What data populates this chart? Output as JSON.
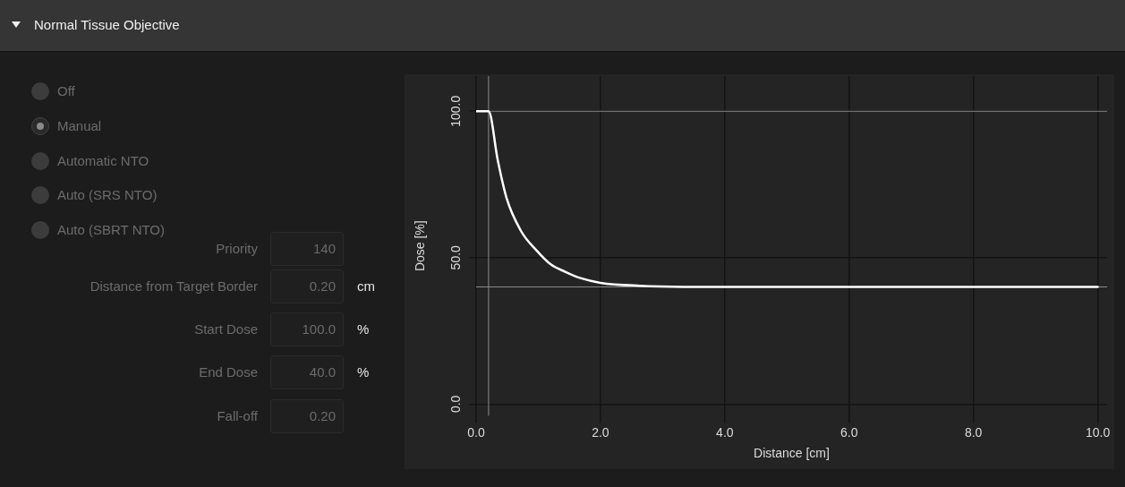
{
  "chart_data": [
    {
      "type": "other",
      "title": "Normal Tissue Objective",
      "annotations": [
        "Off",
        "Manual",
        "Automatic NTO",
        "Auto (SRS NTO)",
        "Auto (SBRT NTO)",
        "Priority",
        "140",
        "Distance from Target Border",
        "0.20",
        "cm",
        "Start Dose",
        "100.0",
        "%",
        "End Dose",
        "40.0",
        "%",
        "Fall-off",
        "0.20"
      ]
    },
    {
      "type": "line",
      "xlabel": "Distance [cm]",
      "ylabel": "Dose [%]",
      "xlim": [
        0,
        10.15
      ],
      "ylim": [
        -4,
        112
      ],
      "xticks": [
        {
          "value": 0,
          "label": "0.0"
        },
        {
          "value": 2,
          "label": "2.0"
        },
        {
          "value": 4,
          "label": "4.0"
        },
        {
          "value": 6,
          "label": "6.0"
        },
        {
          "value": 8,
          "label": "8.0"
        },
        {
          "value": 10,
          "label": "10.0"
        }
      ],
      "yticks": [
        {
          "value": 0,
          "label": "0.0"
        },
        {
          "value": 50,
          "label": "50.0"
        },
        {
          "value": 100,
          "label": "100.0"
        }
      ],
      "x": [
        0,
        0.2,
        0.35,
        0.49,
        0.73,
        0.97,
        1.2,
        1.44,
        1.68,
        2.0,
        2.63,
        3.58,
        10.0
      ],
      "series": [
        {
          "color": "#ffffff",
          "values": [
            100,
            100,
            83,
            70.3,
            58.8,
            52.5,
            47.7,
            45.1,
            43,
            41.4,
            40.4,
            40,
            40
          ]
        }
      ],
      "ref_lines": [
        {
          "axis": "y",
          "value": 100,
          "color": "#8c8c8c"
        },
        {
          "axis": "y",
          "value": 40,
          "color": "#8c8c8c"
        },
        {
          "axis": "x",
          "value": 0.2,
          "color": "#8c8c8c"
        }
      ],
      "grid": true,
      "legend": false,
      "marker": "none",
      "line_style": "solid"
    }
  ]
}
